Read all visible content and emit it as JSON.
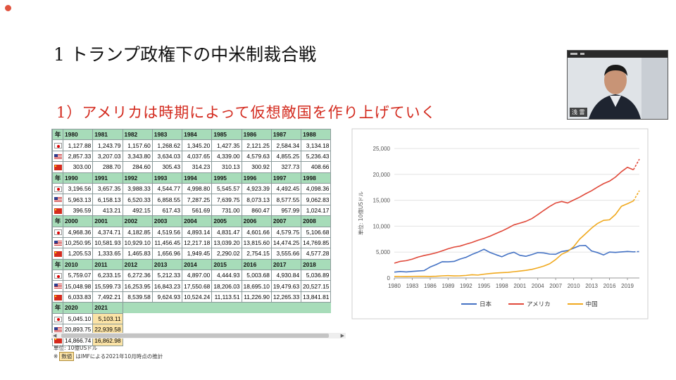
{
  "title": "1 トランプ政権下の中米制裁合戦",
  "subtitle": "1）アメリカは時期によって仮想敵国を作り上げていく",
  "video": {
    "label": "浅 雷"
  },
  "table": {
    "year_header": "年",
    "blocks": [
      {
        "years": [
          "1980",
          "1981",
          "1982",
          "1983",
          "1984",
          "1985",
          "1986",
          "1987",
          "1988"
        ],
        "jp": [
          "1,127.88",
          "1,243.79",
          "1,157.60",
          "1,268.62",
          "1,345.20",
          "1,427.35",
          "2,121.25",
          "2,584.34",
          "3,134.18"
        ],
        "us": [
          "2,857.33",
          "3,207.03",
          "3,343.80",
          "3,634.03",
          "4,037.65",
          "4,339.00",
          "4,579.63",
          "4,855.25",
          "5,236.43"
        ],
        "cn": [
          "303.00",
          "288.70",
          "284.60",
          "305.43",
          "314.23",
          "310.13",
          "300.92",
          "327.73",
          "408.66"
        ]
      },
      {
        "years": [
          "1990",
          "1991",
          "1992",
          "1993",
          "1994",
          "1995",
          "1996",
          "1997",
          "1998"
        ],
        "jp": [
          "3,196.56",
          "3,657.35",
          "3,988.33",
          "4,544.77",
          "4,998.80",
          "5,545.57",
          "4,923.39",
          "4,492.45",
          "4,098.36"
        ],
        "us": [
          "5,963.13",
          "6,158.13",
          "6,520.33",
          "6,858.55",
          "7,287.25",
          "7,639.75",
          "8,073.13",
          "8,577.55",
          "9,062.83"
        ],
        "cn": [
          "396.59",
          "413.21",
          "492.15",
          "617.43",
          "561.69",
          "731.00",
          "860.47",
          "957.99",
          "1,024.17"
        ]
      },
      {
        "years": [
          "2000",
          "2001",
          "2002",
          "2003",
          "2004",
          "2005",
          "2006",
          "2007",
          "2008"
        ],
        "jp": [
          "4,968.36",
          "4,374.71",
          "4,182.85",
          "4,519.56",
          "4,893.14",
          "4,831.47",
          "4,601.66",
          "4,579.75",
          "5,106.68"
        ],
        "us": [
          "10,250.95",
          "10,581.93",
          "10,929.10",
          "11,456.45",
          "12,217.18",
          "13,039.20",
          "13,815.60",
          "14,474.25",
          "14,769.85"
        ],
        "cn": [
          "1,205.53",
          "1,333.65",
          "1,465.83",
          "1,656.96",
          "1,949.45",
          "2,290.02",
          "2,754.15",
          "3,555.66",
          "4,577.28"
        ]
      },
      {
        "years": [
          "2010",
          "2011",
          "2012",
          "2013",
          "2014",
          "2015",
          "2016",
          "2017",
          "2018"
        ],
        "jp": [
          "5,759.07",
          "6,233.15",
          "6,272.36",
          "5,212.33",
          "4,897.00",
          "4,444.93",
          "5,003.68",
          "4,930.84",
          "5,036.89"
        ],
        "us": [
          "15,048.98",
          "15,599.73",
          "16,253.95",
          "16,843.23",
          "17,550.68",
          "18,206.03",
          "18,695.10",
          "19,479.63",
          "20,527.15"
        ],
        "cn": [
          "6,033.83",
          "7,492.21",
          "8,539.58",
          "9,624.93",
          "10,524.24",
          "11,113.51",
          "11,226.90",
          "12,265.33",
          "13,841.81"
        ]
      },
      {
        "years": [
          "2020",
          "2021"
        ],
        "jp": [
          "5,045.10",
          "5,103.11"
        ],
        "us": [
          "20,893.75",
          "22,939.58"
        ],
        "cn": [
          "14,866.74",
          "16,862.98"
        ],
        "estimated_index": 1
      }
    ]
  },
  "notes": {
    "unit": "単位: 10億USドル",
    "est_prefix": "※",
    "est_chip": "数値",
    "est_text": "はIMFによる2021年10月時点の推計"
  },
  "chart_data": {
    "type": "line",
    "ylabel": "単位: 10億USドル",
    "ylim": [
      0,
      25000
    ],
    "yticks": [
      "0",
      "5,000",
      "10,000",
      "15,000",
      "20,000",
      "25,000"
    ],
    "xticks": [
      "1980",
      "1983",
      "1986",
      "1989",
      "1992",
      "1995",
      "1998",
      "2001",
      "2004",
      "2007",
      "2010",
      "2013",
      "2016",
      "2019"
    ],
    "legend_position": "bottom",
    "x": [
      1980,
      1981,
      1982,
      1983,
      1984,
      1985,
      1986,
      1987,
      1988,
      1989,
      1990,
      1991,
      1992,
      1993,
      1994,
      1995,
      1996,
      1997,
      1998,
      1999,
      2000,
      2001,
      2002,
      2003,
      2004,
      2005,
      2006,
      2007,
      2008,
      2009,
      2010,
      2011,
      2012,
      2013,
      2014,
      2015,
      2016,
      2017,
      2018,
      2019,
      2020,
      2021
    ],
    "series": [
      {
        "name": "日本",
        "color": "#4472c4",
        "values": [
          1127.88,
          1243.79,
          1157.6,
          1268.62,
          1345.2,
          1427.35,
          2121.25,
          2584.34,
          3134.18,
          3117,
          3196.56,
          3657.35,
          3988.33,
          4544.77,
          4998.8,
          5545.57,
          4923.39,
          4492.45,
          4098.36,
          4635,
          4968.36,
          4374.71,
          4182.85,
          4519.56,
          4893.14,
          4831.47,
          4601.66,
          4579.75,
          5106.68,
          5289,
          5759.07,
          6233.15,
          6272.36,
          5212.33,
          4897.0,
          4444.93,
          5003.68,
          4930.84,
          5036.89,
          5118,
          5045.1,
          5103.11
        ]
      },
      {
        "name": "アメリカ",
        "color": "#e0493a",
        "values": [
          2857.33,
          3207.03,
          3343.8,
          3634.03,
          4037.65,
          4339.0,
          4579.63,
          4855.25,
          5236.43,
          5641,
          5963.13,
          6158.13,
          6520.33,
          6858.55,
          7287.25,
          7639.75,
          8073.13,
          8577.55,
          9062.83,
          9631,
          10250.95,
          10581.93,
          10929.1,
          11456.45,
          12217.18,
          13039.2,
          13815.6,
          14474.25,
          14769.85,
          14478,
          15048.98,
          15599.73,
          16253.95,
          16843.23,
          17550.68,
          18206.03,
          18695.1,
          19479.63,
          20527.15,
          21372,
          20893.75,
          22939.58
        ]
      },
      {
        "name": "中国",
        "color": "#f0a91e",
        "values": [
          303.0,
          288.7,
          284.6,
          305.43,
          314.23,
          310.13,
          300.92,
          327.73,
          408.66,
          456,
          396.59,
          413.21,
          492.15,
          617.43,
          561.69,
          731.0,
          860.47,
          957.99,
          1024.17,
          1083,
          1205.53,
          1333.65,
          1465.83,
          1656.96,
          1949.45,
          2290.02,
          2754.15,
          3555.66,
          4577.28,
          5105,
          6033.83,
          7492.21,
          8539.58,
          9624.93,
          10524.24,
          11113.51,
          11226.9,
          12265.33,
          13841.81,
          14340,
          14866.74,
          16862.98
        ]
      }
    ],
    "estimated_from_index": 40
  }
}
